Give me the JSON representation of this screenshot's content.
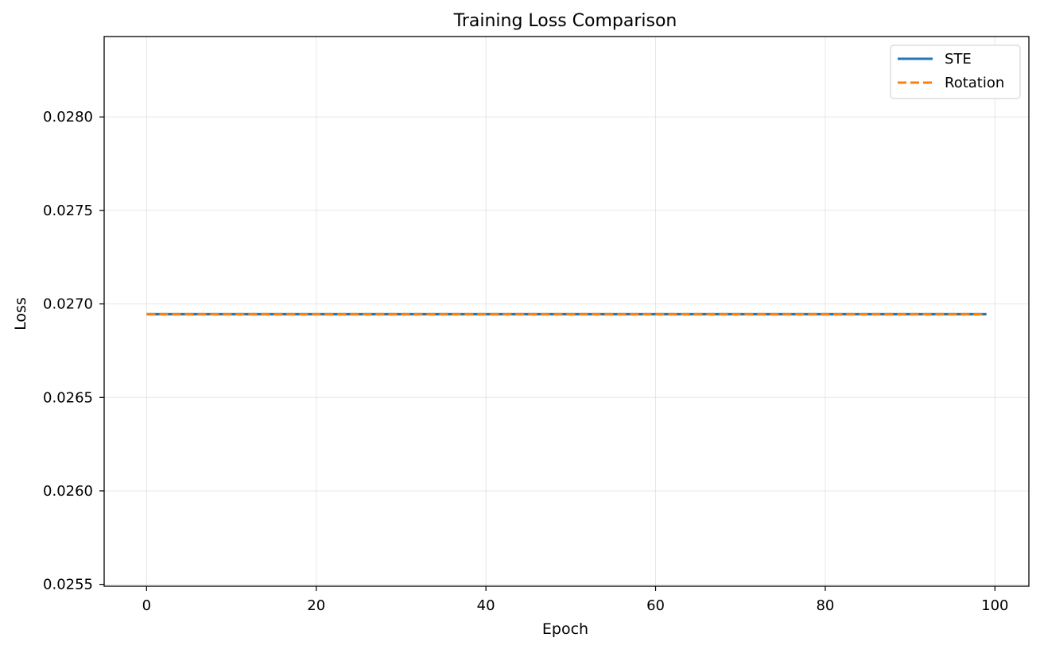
{
  "chart_data": {
    "type": "line",
    "title": "Training Loss Comparison",
    "xlabel": "Epoch",
    "ylabel": "Loss",
    "xlim": [
      -5,
      104
    ],
    "ylim": [
      0.02549,
      0.02843
    ],
    "xticks": [
      0,
      20,
      40,
      60,
      80,
      100
    ],
    "yticks": [
      0.0255,
      0.026,
      0.0265,
      0.027,
      0.0275,
      0.028
    ],
    "ytick_labels": [
      "0.0255",
      "0.0260",
      "0.0265",
      "0.0270",
      "0.0275",
      "0.0280"
    ],
    "grid": true,
    "legend_position": "top-right",
    "series": [
      {
        "name": "STE",
        "color": "#1f77b4",
        "style": "solid",
        "x": [
          0,
          99
        ],
        "y": [
          0.026945,
          0.026945
        ]
      },
      {
        "name": "Rotation",
        "color": "#ff7f0e",
        "style": "dashed",
        "x": [
          0,
          99
        ],
        "y": [
          0.026945,
          0.026945
        ]
      }
    ]
  }
}
